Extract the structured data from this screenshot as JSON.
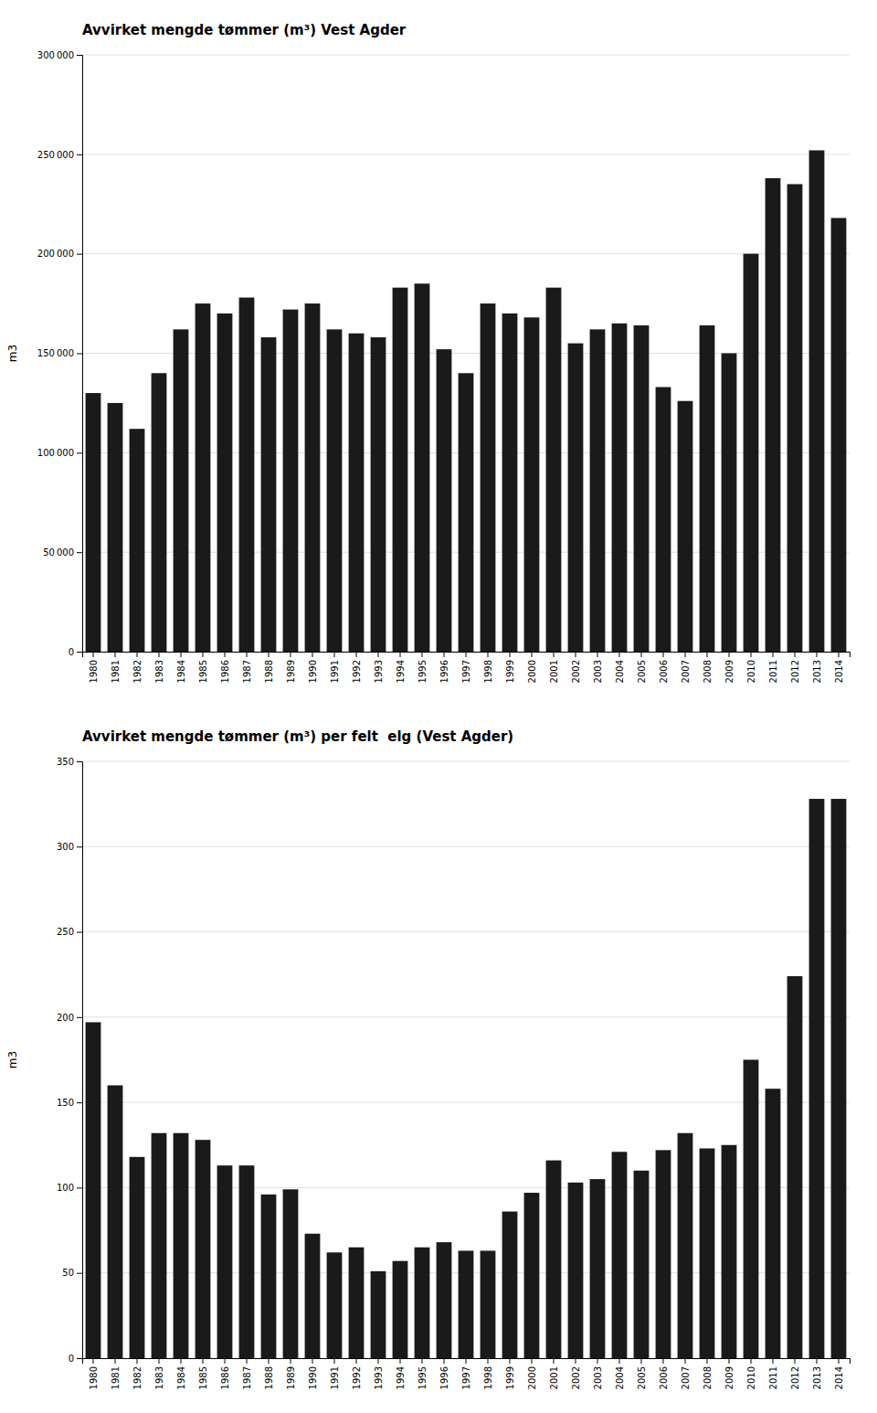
{
  "chart_data": [
    {
      "type": "bar",
      "title": "Avvirket mengde tømmer (m³) Vest Agder",
      "y_label": "m3",
      "categories": [
        "1980",
        "1981",
        "1982",
        "1983",
        "1984",
        "1985",
        "1986",
        "1987",
        "1988",
        "1989",
        "1990",
        "1991",
        "1992",
        "1993",
        "1994",
        "1995",
        "1996",
        "1997",
        "1998",
        "1999",
        "2000",
        "2001",
        "2002",
        "2003",
        "2004",
        "2005",
        "2006",
        "2007",
        "2008",
        "2009",
        "2010",
        "2011",
        "2012",
        "2013",
        "2014"
      ],
      "values": [
        130000,
        125000,
        112000,
        140000,
        162000,
        175000,
        170000,
        178000,
        158000,
        172000,
        175000,
        162000,
        160000,
        158000,
        183000,
        185000,
        152000,
        140000,
        175000,
        170000,
        168000,
        183000,
        155000,
        162000,
        165000,
        164000,
        133000,
        126000,
        164000,
        150000,
        200000,
        238000,
        235000,
        252000,
        218000
      ],
      "color": "#1a1a1a",
      "ylim": [
        0,
        300000
      ],
      "yticks": [
        0,
        {
          "value": 50000,
          "label": "50 000"
        },
        {
          "value": 100000,
          "label": "100 000"
        },
        {
          "value": 150000,
          "label": "150 000"
        },
        {
          "value": 200000,
          "label": "200 000"
        },
        {
          "value": 250000,
          "label": "250 000"
        },
        {
          "value": 300000,
          "label": "300 000"
        }
      ],
      "grid": true
    },
    {
      "type": "bar",
      "title": "Avvirket mengde tømmer (m³) per felt  elg (Vest Agder)",
      "y_label": "m3",
      "categories": [
        "1980",
        "1981",
        "1982",
        "1983",
        "1984",
        "1985",
        "1986",
        "1987",
        "1988",
        "1989",
        "1990",
        "1991",
        "1992",
        "1993",
        "1994",
        "1995",
        "1996",
        "1997",
        "1998",
        "1999",
        "2000",
        "2001",
        "2002",
        "2003",
        "2004",
        "2005",
        "2006",
        "2007",
        "2008",
        "2009",
        "2010",
        "2011",
        "2012",
        "2013",
        "2014"
      ],
      "values": [
        197,
        160,
        118,
        132,
        132,
        128,
        113,
        113,
        96,
        99,
        73,
        62,
        65,
        51,
        57,
        65,
        68,
        63,
        63,
        86,
        97,
        116,
        103,
        105,
        121,
        110,
        122,
        132,
        123,
        125,
        175,
        158,
        224,
        328,
        328
      ],
      "color": "#1a1a1a",
      "ylim": [
        0,
        350
      ],
      "yticks": [
        0,
        50,
        100,
        150,
        200,
        250,
        300,
        350
      ],
      "grid": true
    }
  ]
}
